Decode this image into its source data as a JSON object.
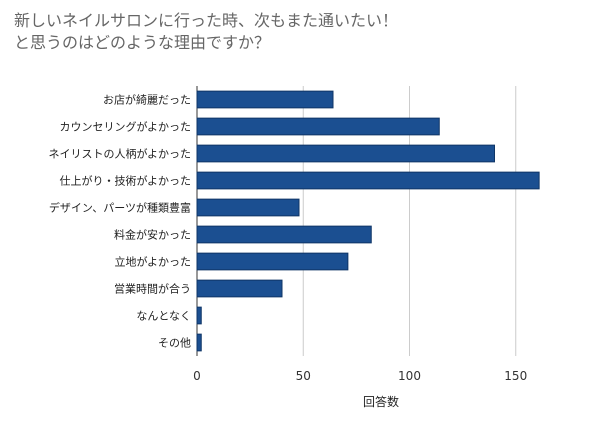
{
  "chart_data": {
    "type": "bar",
    "orientation": "horizontal",
    "title_lines": [
      "新しいネイルサロンに行った時、次もまた通いたい！",
      "と思うのはどのような理由ですか？"
    ],
    "categories": [
      "お店が綺麗だった",
      "カウンセリングがよかった",
      "ネイリストの人柄がよかった",
      "仕上がり・技術がよかった",
      "デザイン、パーツが種類豊富",
      "料金が安かった",
      "立地がよかった",
      "営業時間が合う",
      "なんとなく",
      "その他"
    ],
    "values": [
      64,
      114,
      140,
      161,
      48,
      82,
      71,
      40,
      2,
      2
    ],
    "xlabel": "回答数",
    "ylabel": "",
    "xlim": [
      0,
      160
    ],
    "xticks": [
      0,
      50,
      100,
      150
    ],
    "xtick_labels": [
      "0",
      "50",
      "100",
      "150"
    ],
    "grid": true,
    "legend": "none",
    "bar_color": "#1b4f91",
    "bar_edge_color": "#0f3566",
    "grid_color": "#cccccc",
    "axis_color": "#333333"
  }
}
